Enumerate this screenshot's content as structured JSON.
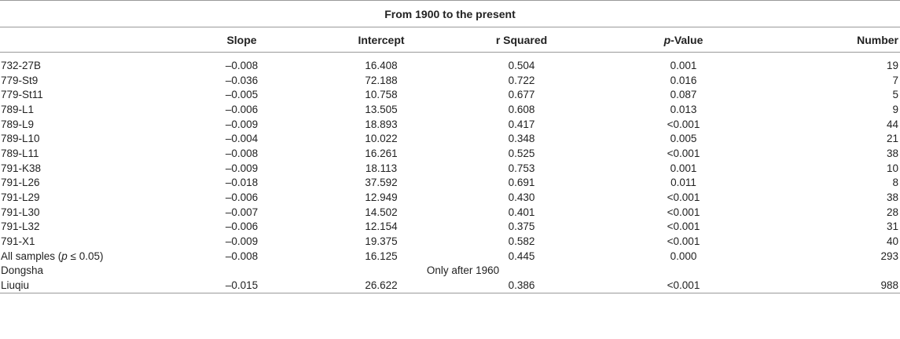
{
  "title": "From 1900 to the present",
  "headers": {
    "slope": "Slope",
    "intercept": "Intercept",
    "r_squared": "r Squared",
    "p_prefix": "p",
    "p_suffix": "-Value",
    "number": "Number"
  },
  "rows": [
    {
      "site": "732-27B",
      "slope": "–0.008",
      "intercept": "16.408",
      "r2": "0.504",
      "p": "0.001",
      "n": "19"
    },
    {
      "site": "779-St9",
      "slope": "–0.036",
      "intercept": "72.188",
      "r2": "0.722",
      "p": "0.016",
      "n": "7"
    },
    {
      "site": "779-St11",
      "slope": "–0.005",
      "intercept": "10.758",
      "r2": "0.677",
      "p": "0.087",
      "n": "5"
    },
    {
      "site": "789-L1",
      "slope": "–0.006",
      "intercept": "13.505",
      "r2": "0.608",
      "p": "0.013",
      "n": "9"
    },
    {
      "site": "789-L9",
      "slope": "–0.009",
      "intercept": "18.893",
      "r2": "0.417",
      "p": "<0.001",
      "n": "44"
    },
    {
      "site": "789-L10",
      "slope": "–0.004",
      "intercept": "10.022",
      "r2": "0.348",
      "p": "0.005",
      "n": "21"
    },
    {
      "site": "789-L11",
      "slope": "–0.008",
      "intercept": "16.261",
      "r2": "0.525",
      "p": "<0.001",
      "n": "38"
    },
    {
      "site": "791-K38",
      "slope": "–0.009",
      "intercept": "18.113",
      "r2": "0.753",
      "p": "0.001",
      "n": "10"
    },
    {
      "site": "791-L26",
      "slope": "–0.018",
      "intercept": "37.592",
      "r2": "0.691",
      "p": "0.011",
      "n": "8"
    },
    {
      "site": "791-L29",
      "slope": "–0.006",
      "intercept": "12.949",
      "r2": "0.430",
      "p": "<0.001",
      "n": "38"
    },
    {
      "site": "791-L30",
      "slope": "–0.007",
      "intercept": "14.502",
      "r2": "0.401",
      "p": "<0.001",
      "n": "28"
    },
    {
      "site": "791-L32",
      "slope": "–0.006",
      "intercept": "12.154",
      "r2": "0.375",
      "p": "<0.001",
      "n": "31"
    },
    {
      "site": "791-X1",
      "slope": "–0.009",
      "intercept": "19.375",
      "r2": "0.582",
      "p": "<0.001",
      "n": "40"
    }
  ],
  "all_samples": {
    "label_prefix": "All samples (",
    "label_p": "p",
    "label_suffix": " ≤ 0.05)",
    "slope": "–0.008",
    "intercept": "16.125",
    "r2": "0.445",
    "p": "0.000",
    "n": "293"
  },
  "dongsha": {
    "site": "Dongsha",
    "note": "Only after 1960"
  },
  "liuqiu": {
    "site": "Liuqiu",
    "slope": "–0.015",
    "intercept": "26.622",
    "r2": "0.386",
    "p": "<0.001",
    "n": "988"
  }
}
